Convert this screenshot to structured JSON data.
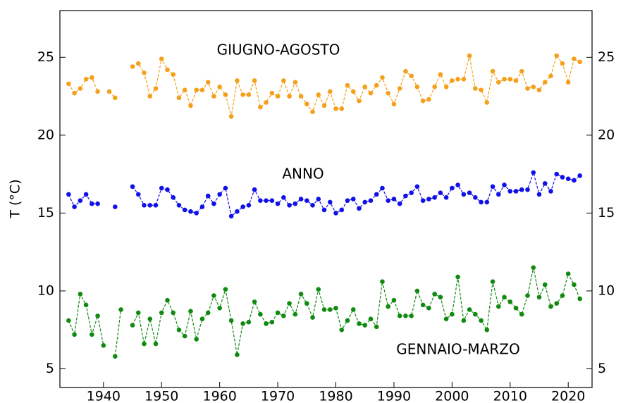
{
  "chart_data": {
    "type": "line",
    "y_label": "T (°C)",
    "x": [
      1934,
      1935,
      1936,
      1937,
      1938,
      1939,
      1940,
      1941,
      1942,
      1943,
      1944,
      1945,
      1946,
      1947,
      1948,
      1949,
      1950,
      1951,
      1952,
      1953,
      1954,
      1955,
      1956,
      1957,
      1958,
      1959,
      1960,
      1961,
      1962,
      1963,
      1964,
      1965,
      1966,
      1967,
      1968,
      1969,
      1970,
      1971,
      1972,
      1973,
      1974,
      1975,
      1976,
      1977,
      1978,
      1979,
      1980,
      1981,
      1982,
      1983,
      1984,
      1985,
      1986,
      1987,
      1988,
      1989,
      1990,
      1991,
      1992,
      1993,
      1994,
      1995,
      1996,
      1997,
      1998,
      1999,
      2000,
      2001,
      2002,
      2003,
      2004,
      2005,
      2006,
      2007,
      2008,
      2009,
      2010,
      2011,
      2012,
      2013,
      2014,
      2015,
      2016,
      2017,
      2018,
      2019,
      2020,
      2021,
      2022
    ],
    "series": [
      {
        "name": "GIUGNO-AGOSTO",
        "color": "#f5a01a",
        "values": [
          23.3,
          22.7,
          23.0,
          23.6,
          23.7,
          22.8,
          null,
          22.8,
          22.4,
          null,
          null,
          24.4,
          24.6,
          24.0,
          22.5,
          23.0,
          24.9,
          24.2,
          23.9,
          22.4,
          22.9,
          21.9,
          22.9,
          22.9,
          23.4,
          22.5,
          23.1,
          22.6,
          21.2,
          23.5,
          22.6,
          22.6,
          23.5,
          21.8,
          22.1,
          22.7,
          22.5,
          23.5,
          22.5,
          23.4,
          22.5,
          22.0,
          21.5,
          22.6,
          21.9,
          22.8,
          21.7,
          21.7,
          23.2,
          22.8,
          22.2,
          23.1,
          22.7,
          23.2,
          23.7,
          22.7,
          22.0,
          23.0,
          24.1,
          23.8,
          23.1,
          22.2,
          22.3,
          23.1,
          23.9,
          23.1,
          23.5,
          23.6,
          23.6,
          25.1,
          23.0,
          22.9,
          22.1,
          24.1,
          23.4,
          23.6,
          23.6,
          23.5,
          24.1,
          23.0,
          23.1,
          22.9,
          23.4,
          23.8,
          25.1,
          24.6,
          23.4,
          24.9,
          24.7
        ]
      },
      {
        "name": "ANNO",
        "color": "#1010e8",
        "values": [
          16.2,
          15.4,
          15.8,
          16.2,
          15.6,
          15.6,
          null,
          null,
          15.4,
          null,
          null,
          16.7,
          16.2,
          15.5,
          15.5,
          15.5,
          16.6,
          16.5,
          16.0,
          15.5,
          15.2,
          15.1,
          15.0,
          15.4,
          16.1,
          15.6,
          16.2,
          16.6,
          14.8,
          15.1,
          15.4,
          15.5,
          16.5,
          15.8,
          15.8,
          15.8,
          15.6,
          16.0,
          15.5,
          15.6,
          15.9,
          15.8,
          15.5,
          15.9,
          15.2,
          15.7,
          15.0,
          15.2,
          15.8,
          15.9,
          15.3,
          15.7,
          15.8,
          16.2,
          16.6,
          15.8,
          15.9,
          15.6,
          16.1,
          16.3,
          16.7,
          15.8,
          15.9,
          16.0,
          16.3,
          16.0,
          16.6,
          16.8,
          16.2,
          16.3,
          16.0,
          15.7,
          15.7,
          16.7,
          16.2,
          16.8,
          16.4,
          16.4,
          16.5,
          16.5,
          17.6,
          16.2,
          16.9,
          16.4,
          17.5,
          17.3,
          17.2,
          17.1,
          17.4
        ]
      },
      {
        "name": "GENNAIO-MARZO",
        "color": "#108a10",
        "values": [
          8.1,
          7.2,
          9.8,
          9.1,
          7.2,
          8.4,
          6.5,
          null,
          5.8,
          8.8,
          null,
          7.8,
          8.6,
          6.6,
          8.2,
          6.6,
          8.6,
          9.4,
          8.6,
          7.5,
          7.1,
          8.7,
          6.9,
          8.2,
          8.6,
          9.7,
          8.9,
          10.1,
          8.1,
          5.9,
          7.9,
          8.0,
          9.3,
          8.5,
          7.9,
          8.0,
          8.6,
          8.4,
          9.2,
          8.5,
          9.8,
          9.2,
          8.3,
          10.1,
          8.8,
          8.8,
          8.9,
          7.5,
          8.1,
          8.8,
          7.9,
          7.8,
          8.2,
          7.7,
          10.6,
          9.0,
          9.4,
          8.4,
          8.4,
          8.4,
          10.0,
          9.1,
          8.9,
          9.8,
          9.6,
          8.2,
          8.5,
          10.9,
          8.1,
          8.8,
          8.5,
          8.1,
          7.5,
          10.6,
          9.0,
          9.6,
          9.3,
          8.9,
          8.5,
          9.7,
          11.5,
          9.6,
          10.4,
          9.0,
          9.2,
          9.7,
          11.1,
          10.4,
          9.5
        ]
      }
    ],
    "xlim": [
      1932.5,
      2024.1
    ],
    "xticks": [
      1940,
      1950,
      1960,
      1970,
      1980,
      1990,
      2000,
      2010,
      2020
    ],
    "ylim": [
      3.8,
      28
    ],
    "yticks": [
      5,
      10,
      15,
      20,
      25
    ]
  }
}
